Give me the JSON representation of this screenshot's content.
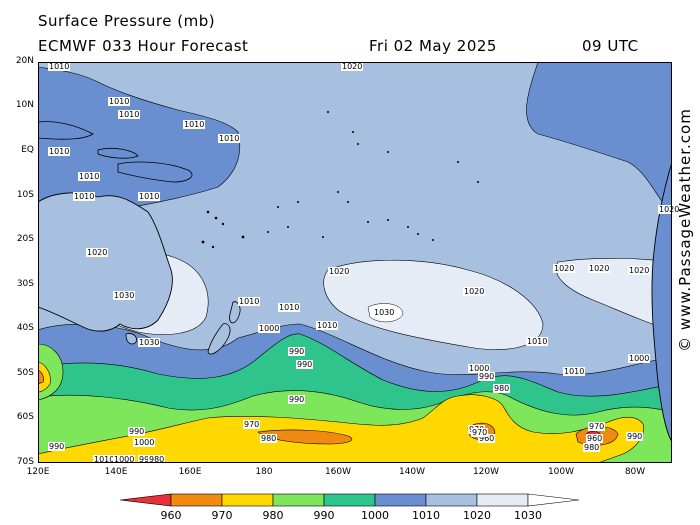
{
  "header": {
    "title": "Surface Pressure (mb)",
    "model": "ECMWF 033 Hour Forecast",
    "date": "Fri 02 May 2025",
    "time": "09 UTC"
  },
  "credit": "© www.PassageWeather.com",
  "map": {
    "lat_labels": [
      "20N",
      "10N",
      "EQ",
      "10S",
      "20S",
      "30S",
      "40S",
      "50S",
      "60S",
      "70S"
    ],
    "lon_labels": [
      "120E",
      "140E",
      "160E",
      "180",
      "160W",
      "140W",
      "120W",
      "100W",
      "80W"
    ],
    "isobar_labels": [
      "1020",
      "1010",
      "1010",
      "1010",
      "1010",
      "1010",
      "1010",
      "1010",
      "1010",
      "1010",
      "1020",
      "1030",
      "1030",
      "1010",
      "1010",
      "1010",
      "1000",
      "1020",
      "1030",
      "1020",
      "1020",
      "1010",
      "1000",
      "990",
      "1020",
      "1020",
      "1020",
      "1010",
      "1000",
      "990",
      "990",
      "990",
      "980",
      "970",
      "970",
      "960",
      "1000",
      "990",
      "980",
      "970",
      "980",
      "970",
      "990",
      "960",
      "990",
      "1010",
      "1000",
      "990",
      "980"
    ]
  },
  "legend": {
    "values": [
      "960",
      "970",
      "980",
      "990",
      "1000",
      "1010",
      "1020",
      "1030"
    ],
    "colors": [
      "#e8303a",
      "#f08a10",
      "#ffd800",
      "#7de65a",
      "#2fc48c",
      "#6a8fd0",
      "#a8c0e0",
      "#e6ecf6",
      "#ffffff"
    ]
  }
}
